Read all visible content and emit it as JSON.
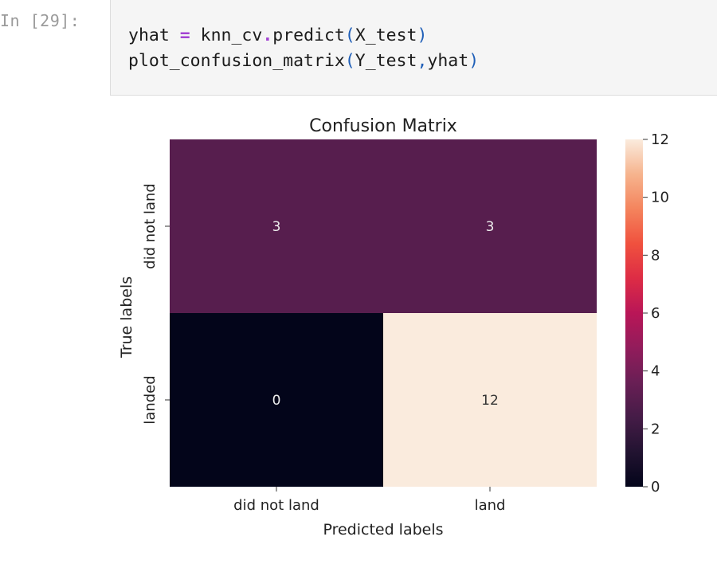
{
  "cell": {
    "prompt": "In [29]:",
    "code": {
      "line1": {
        "var": "yhat",
        "assign": "=",
        "obj": "knn_cv",
        "dot": ".",
        "method": "predict",
        "open": "(",
        "arg": "X_test",
        "close": ")"
      },
      "line2": {
        "func": "plot_confusion_matrix",
        "open": "(",
        "arg1": "Y_test",
        "comma": ",",
        "arg2": "yhat",
        "close": ")"
      }
    }
  },
  "chart_data": {
    "type": "heatmap",
    "title": "Confusion Matrix",
    "xlabel": "Predicted labels",
    "ylabel": "True labels",
    "x_categories": [
      "did not land",
      "land"
    ],
    "y_categories": [
      "did not land",
      "landed"
    ],
    "values": [
      [
        3,
        3
      ],
      [
        0,
        12
      ]
    ],
    "colorbar": {
      "min": 0,
      "max": 12,
      "ticks": [
        0,
        2,
        4,
        6,
        8,
        10,
        12
      ]
    },
    "colormap": "rocket",
    "annotations": true
  }
}
